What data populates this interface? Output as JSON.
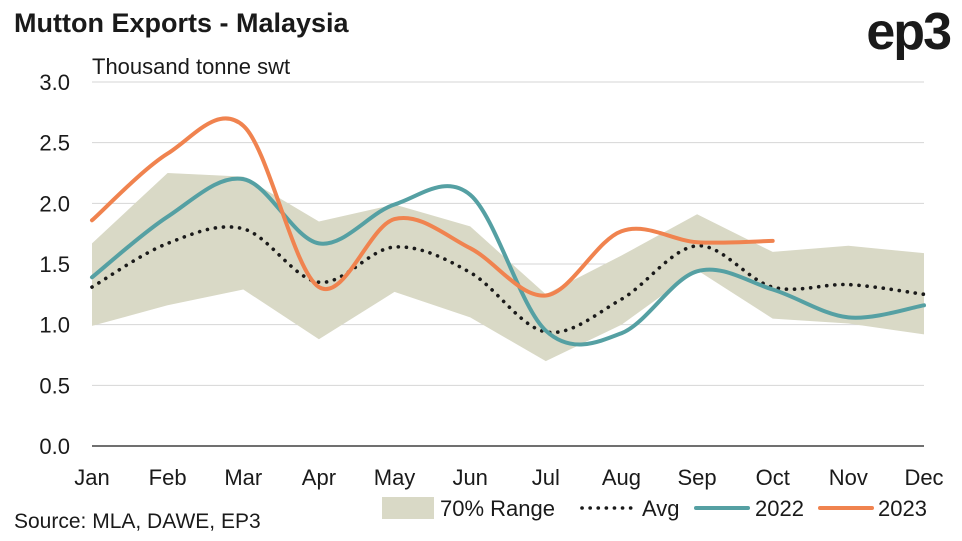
{
  "header": {
    "title": "Mutton Exports - Malaysia",
    "logo_text": "ep3"
  },
  "footer": {
    "source": "Source: MLA, DAWE, EP3"
  },
  "chart_data": {
    "type": "line",
    "title": "Mutton Exports - Malaysia",
    "ylabel": "Thousand tonne swt",
    "xlabel": "",
    "categories": [
      "Jan",
      "Feb",
      "Mar",
      "Apr",
      "May",
      "Jun",
      "Jul",
      "Aug",
      "Sep",
      "Oct",
      "Nov",
      "Dec"
    ],
    "ylim": [
      0,
      3.0
    ],
    "yticks": [
      0.0,
      0.5,
      1.0,
      1.5,
      2.0,
      2.5,
      3.0
    ],
    "ytick_labels": [
      "0.0",
      "0.5",
      "1.0",
      "1.5",
      "2.0",
      "2.5",
      "3.0"
    ],
    "grid": "horizontal",
    "legend_position": "bottom",
    "range": {
      "name": "70% Range",
      "color": "#d9d9c6",
      "lower": [
        0.99,
        1.16,
        1.29,
        0.88,
        1.27,
        1.06,
        0.7,
        1.0,
        1.45,
        1.05,
        1.01,
        0.92
      ],
      "upper": [
        1.67,
        2.25,
        2.22,
        1.85,
        1.99,
        1.81,
        1.25,
        1.57,
        1.91,
        1.6,
        1.65,
        1.59
      ]
    },
    "series": [
      {
        "name": "Avg",
        "color": "#1a1a1a",
        "style": "dotted",
        "values": [
          1.31,
          1.67,
          1.79,
          1.35,
          1.64,
          1.43,
          0.94,
          1.21,
          1.65,
          1.31,
          1.33,
          1.25
        ]
      },
      {
        "name": "2022",
        "color": "#55a0a3",
        "style": "solid",
        "values": [
          1.39,
          1.89,
          2.2,
          1.67,
          1.99,
          2.07,
          0.95,
          0.93,
          1.44,
          1.29,
          1.06,
          1.16
        ]
      },
      {
        "name": "2023",
        "color": "#f0834f",
        "style": "solid",
        "values": [
          1.86,
          2.41,
          2.64,
          1.31,
          1.87,
          1.63,
          1.24,
          1.77,
          1.68,
          1.69,
          null,
          null
        ]
      }
    ]
  }
}
